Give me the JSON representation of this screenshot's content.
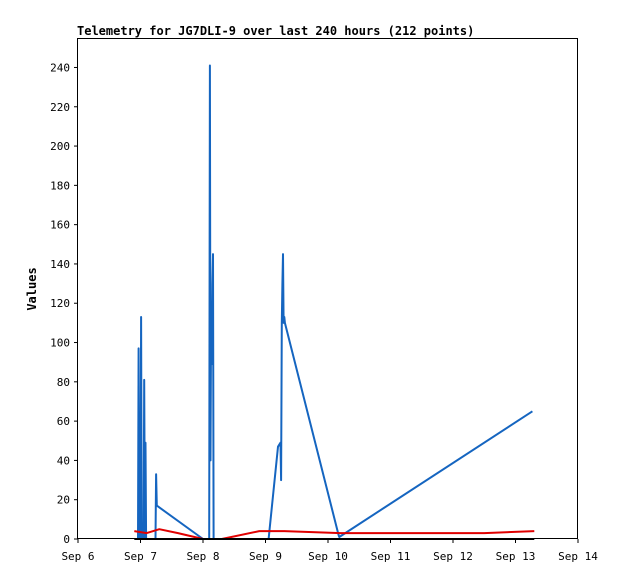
{
  "chart_data": {
    "type": "line",
    "title": "Telemetry for JG7DLI-9 over last 240 hours (212 points)",
    "xlabel": "",
    "ylabel": "Values",
    "x_ticks": [
      "Sep 6",
      "Sep 7",
      "Sep 8",
      "Sep 9",
      "Sep 10",
      "Sep 11",
      "Sep 12",
      "Sep 13",
      "Sep 14"
    ],
    "xlim": [
      6.0,
      14.0
    ],
    "ylim": [
      0,
      255
    ],
    "y_ticks": [
      0,
      20,
      40,
      60,
      80,
      100,
      120,
      140,
      160,
      180,
      200,
      220,
      240
    ],
    "grid": false,
    "legend": "none",
    "series": [
      {
        "color": "#1565c0",
        "x": [
          6.96,
          6.97,
          6.98,
          6.99,
          7.0,
          7.01,
          7.02,
          7.03,
          7.04,
          7.05,
          7.06,
          7.07,
          7.08,
          7.09,
          7.1,
          7.11,
          7.12,
          7.13,
          7.14,
          7.15,
          7.16,
          7.17,
          7.18,
          7.19,
          7.2,
          7.21,
          7.22,
          7.23,
          7.24,
          7.25,
          7.26,
          8.0,
          8.01,
          8.02,
          8.03,
          8.04,
          8.05,
          8.06,
          8.07,
          8.08,
          8.09,
          8.1,
          8.11,
          8.12,
          8.13,
          8.14,
          8.15,
          8.16,
          8.17,
          8.2,
          8.35,
          8.49,
          8.9,
          9.05,
          9.2,
          9.24,
          9.25,
          9.26,
          9.27,
          9.28,
          9.29,
          9.3,
          9.31,
          10.17,
          10.18,
          13.27
        ],
        "y": [
          0,
          97,
          0,
          17,
          0,
          113,
          0,
          5,
          0,
          0,
          81,
          0,
          49,
          0,
          0,
          0,
          0,
          0,
          0,
          0,
          0,
          0,
          0,
          0,
          0,
          0,
          0,
          0,
          0,
          33,
          17,
          0,
          0,
          0,
          0,
          0,
          0,
          0,
          0,
          0,
          0,
          0,
          241,
          40,
          113,
          89,
          130,
          145,
          0,
          0,
          0,
          0,
          0,
          0,
          47,
          49,
          30,
          110,
          130,
          145,
          110,
          113,
          110,
          2,
          1,
          65
        ]
      },
      {
        "color": "#e00000",
        "x": [
          6.9,
          7.1,
          7.3,
          7.6,
          8.0,
          8.3,
          8.9,
          9.3,
          10.2,
          11.0,
          12.5,
          13.3
        ],
        "y": [
          4,
          3,
          5,
          3,
          0,
          0,
          4,
          4,
          3,
          3,
          3,
          4
        ]
      },
      {
        "color": "#000000",
        "x": [
          6.9,
          13.3
        ],
        "y": [
          0,
          0
        ]
      }
    ]
  }
}
